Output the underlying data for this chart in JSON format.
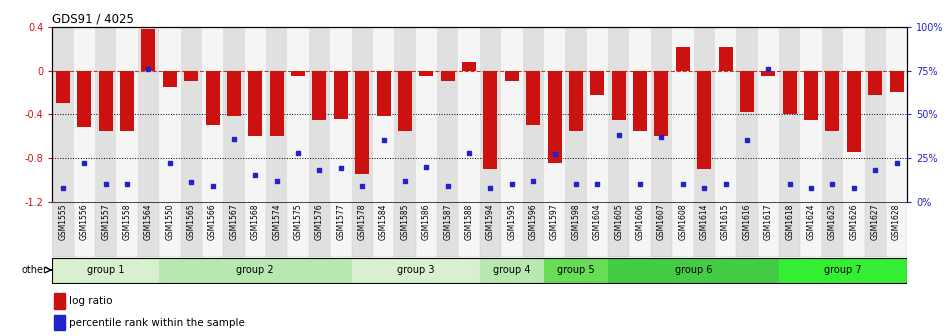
{
  "title": "GDS91 / 4025",
  "samples": [
    "GSM1555",
    "GSM1556",
    "GSM1557",
    "GSM1558",
    "GSM1564",
    "GSM1550",
    "GSM1565",
    "GSM1566",
    "GSM1567",
    "GSM1568",
    "GSM1574",
    "GSM1575",
    "GSM1576",
    "GSM1577",
    "GSM1578",
    "GSM1584",
    "GSM1585",
    "GSM1586",
    "GSM1587",
    "GSM1588",
    "GSM1594",
    "GSM1595",
    "GSM1596",
    "GSM1597",
    "GSM1598",
    "GSM1604",
    "GSM1605",
    "GSM1606",
    "GSM1607",
    "GSM1608",
    "GSM1614",
    "GSM1615",
    "GSM1616",
    "GSM1617",
    "GSM1618",
    "GSM1624",
    "GSM1625",
    "GSM1626",
    "GSM1627",
    "GSM1628"
  ],
  "log_ratio": [
    -0.3,
    -0.52,
    -0.55,
    -0.55,
    0.38,
    -0.15,
    -0.1,
    -0.5,
    -0.42,
    -0.6,
    -0.6,
    -0.05,
    -0.45,
    -0.44,
    -0.95,
    -0.42,
    -0.55,
    -0.05,
    -0.1,
    0.08,
    -0.9,
    -0.1,
    -0.5,
    -0.85,
    -0.55,
    -0.22,
    -0.45,
    -0.55,
    -0.6,
    0.22,
    -0.9,
    0.22,
    -0.38,
    -0.05,
    -0.4,
    -0.45,
    -0.55,
    -0.75,
    -0.22,
    -0.2
  ],
  "percentile": [
    8,
    22,
    10,
    10,
    76,
    22,
    11,
    9,
    36,
    15,
    12,
    28,
    18,
    19,
    9,
    35,
    12,
    20,
    9,
    28,
    8,
    10,
    12,
    27,
    10,
    10,
    38,
    10,
    37,
    10,
    8,
    10,
    35,
    76,
    10,
    8,
    10,
    8,
    18,
    22
  ],
  "bar_color": "#cc1111",
  "dot_color": "#2222cc",
  "ylim": [
    -1.2,
    0.4
  ],
  "y_ticks_left": [
    -1.2,
    -0.8,
    -0.4,
    0.0,
    0.4
  ],
  "y_tick_labels_left": [
    "-1.2",
    "-0.8",
    "-0.4",
    "0",
    "0.4"
  ],
  "y_ticks_right_pct": [
    0,
    25,
    50,
    75,
    100
  ],
  "y_tick_labels_right": [
    "0%",
    "25%",
    "50%",
    "75%",
    "100%"
  ],
  "col_shade_odd": "#e0e0e0",
  "col_shade_even": "#f5f5f5",
  "groups": [
    {
      "name": "group 1",
      "start": 0,
      "end": 4,
      "color": "#d8f0d0"
    },
    {
      "name": "group 2",
      "start": 5,
      "end": 13,
      "color": "#b8e8b0"
    },
    {
      "name": "group 3",
      "start": 14,
      "end": 19,
      "color": "#d8f0d0"
    },
    {
      "name": "group 4",
      "start": 20,
      "end": 22,
      "color": "#b8e8b0"
    },
    {
      "name": "group 5",
      "start": 23,
      "end": 25,
      "color": "#66dd55"
    },
    {
      "name": "group 6",
      "start": 26,
      "end": 33,
      "color": "#44cc44"
    },
    {
      "name": "group 7",
      "start": 34,
      "end": 39,
      "color": "#33ee33"
    }
  ]
}
